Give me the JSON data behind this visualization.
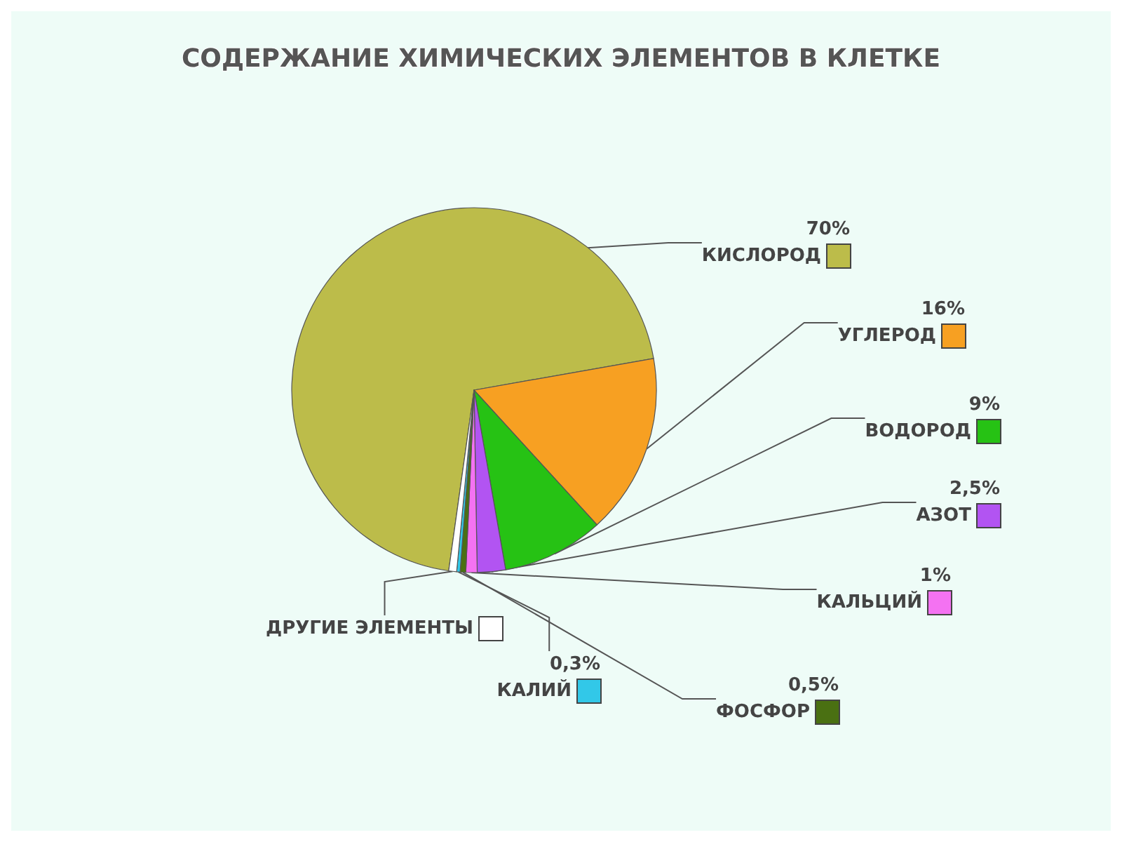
{
  "chart_data": {
    "type": "pie",
    "title": "СОДЕРЖАНИЕ ХИМИЧЕСКИХ ЭЛЕМЕНТОВ В КЛЕТКЕ",
    "categories": [
      "КИСЛОРОД",
      "УГЛЕРОД",
      "ВОДОРОД",
      "АЗОТ",
      "КАЛЬЦИЙ",
      "ФОСФОР",
      "КАЛИЙ",
      "ДРУГИЕ ЭЛЕМЕНТЫ"
    ],
    "values": [
      70,
      16,
      9,
      2.5,
      1,
      0.5,
      0.3,
      0.7
    ],
    "value_labels": [
      "70%",
      "16%",
      "9%",
      "2,5%",
      "1%",
      "0,5%",
      "0,3%",
      null
    ],
    "colors": [
      "#bcbc4a",
      "#f7a022",
      "#26c214",
      "#b254f2",
      "#f472f2",
      "#4a7012",
      "#32c8e8",
      "#ffffff"
    ],
    "legend": "right"
  }
}
